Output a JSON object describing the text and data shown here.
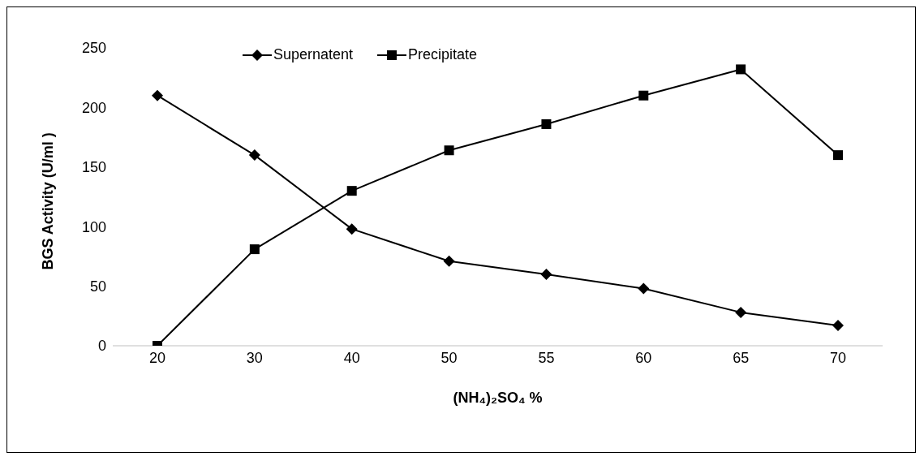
{
  "chart_data": {
    "type": "line",
    "xlabel": "(NH₄)₂SO₄ %",
    "ylabel": "BGS Activity (U/ml )",
    "categories": [
      "20",
      "30",
      "40",
      "50",
      "55",
      "60",
      "65",
      "70"
    ],
    "series": [
      {
        "name": "Supernatent",
        "color": "#000000",
        "marker": "diamond",
        "values": [
          210,
          160,
          98,
          71,
          60,
          48,
          28,
          17
        ]
      },
      {
        "name": "Precipitate",
        "color": "#000000",
        "marker": "square",
        "values": [
          0,
          81,
          130,
          164,
          186,
          210,
          232,
          160
        ]
      }
    ],
    "ylim": [
      0,
      250
    ],
    "yticks": [
      0,
      50,
      100,
      150,
      200,
      250
    ],
    "grid": false,
    "legend": "top left",
    "line_style": "solid"
  }
}
